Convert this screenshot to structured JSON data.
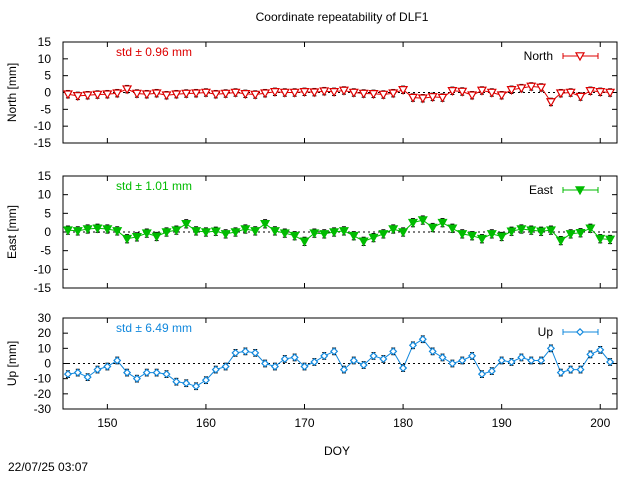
{
  "title": "Coordinate repeatability of DLF1",
  "timestamp": "22/07/25 03:07",
  "chart_data": {
    "type": "line",
    "xlabel": "DOY",
    "xlim": [
      145.5,
      201.7
    ],
    "x_ticks": [
      150,
      160,
      170,
      180,
      190,
      200
    ],
    "x": [
      146,
      147,
      148,
      149,
      150,
      151,
      152,
      153,
      154,
      155,
      156,
      157,
      158,
      159,
      160,
      161,
      162,
      163,
      164,
      165,
      166,
      167,
      168,
      169,
      170,
      171,
      172,
      173,
      174,
      175,
      176,
      177,
      178,
      179,
      180,
      181,
      182,
      183,
      184,
      185,
      186,
      187,
      188,
      189,
      190,
      191,
      192,
      193,
      194,
      195,
      196,
      197,
      198,
      199,
      200,
      201
    ],
    "panels": [
      {
        "series_name": "North",
        "ylabel": "North [mm]",
        "std_text": "std ± 0.96 mm",
        "color": "#dd0000",
        "marker": "triangle-down-open",
        "ylim": [
          -15,
          15
        ],
        "y_ticks": [
          -15,
          -10,
          -5,
          0,
          5,
          10,
          15
        ],
        "values": [
          -0.5,
          -1,
          -0.8,
          -0.6,
          -0.5,
          -0.2,
          1,
          -0.3,
          -0.5,
          -0.2,
          -0.8,
          -0.5,
          -0.3,
          -0.2,
          0,
          -0.5,
          -0.3,
          0,
          -0.4,
          -0.6,
          -0.2,
          0.2,
          0,
          0,
          0.2,
          0.1,
          0.4,
          0.2,
          0.6,
          0,
          -0.3,
          -0.4,
          -0.6,
          -0.2,
          0.8,
          -1.5,
          -1.7,
          -1.3,
          -1.5,
          0.5,
          0.3,
          -0.8,
          0.6,
          0,
          -0.8,
          0.8,
          1.3,
          1.8,
          1.5,
          -2.8,
          -0.2,
          0,
          -1.2,
          0.5,
          0.2,
          0
        ]
      },
      {
        "series_name": "East",
        "ylabel": "East [mm]",
        "std_text": "std ± 1.01 mm",
        "color": "#00bb00",
        "marker": "triangle-down-filled",
        "ylim": [
          -15,
          15
        ],
        "y_ticks": [
          -15,
          -10,
          -5,
          0,
          5,
          10,
          15
        ],
        "values": [
          0.5,
          0.3,
          0.8,
          1,
          0.8,
          0.3,
          -1.8,
          -1.3,
          -0.3,
          -1.2,
          0,
          0.5,
          2.2,
          0.3,
          0,
          0.2,
          -0.5,
          0,
          0.8,
          0.3,
          2.2,
          0.3,
          -0.3,
          -1,
          -2.5,
          -0.3,
          -0.5,
          0,
          0.3,
          -1,
          -2.5,
          -1.5,
          -0.5,
          0.8,
          0,
          2.5,
          3.2,
          1.2,
          2.5,
          1,
          -0.5,
          -1,
          -1.8,
          -0.5,
          -1.2,
          0.2,
          0.8,
          0.5,
          0.2,
          0.5,
          -2.3,
          -0.5,
          -0.2,
          1,
          -1.8,
          -2
        ]
      },
      {
        "series_name": "Up",
        "ylabel": "Up [mm]",
        "std_text": "std ± 6.49 mm",
        "color": "#1188dd",
        "marker": "diamond-open",
        "ylim": [
          -30,
          30
        ],
        "y_ticks": [
          -30,
          -20,
          -10,
          0,
          10,
          20,
          30
        ],
        "values": [
          -7,
          -6,
          -9,
          -4,
          -2,
          2,
          -6,
          -10,
          -6,
          -6,
          -7,
          -12,
          -13,
          -15,
          -11,
          -4,
          -2,
          7,
          8,
          7,
          0,
          -2,
          3,
          4,
          -2,
          1,
          5,
          8,
          -4,
          2,
          -1,
          5,
          3,
          8,
          -3,
          12,
          16,
          8,
          4,
          0,
          2,
          5,
          -7,
          -5,
          2,
          1,
          4,
          2,
          2,
          10,
          -6,
          -4,
          -4,
          6,
          9,
          1
        ]
      }
    ]
  }
}
